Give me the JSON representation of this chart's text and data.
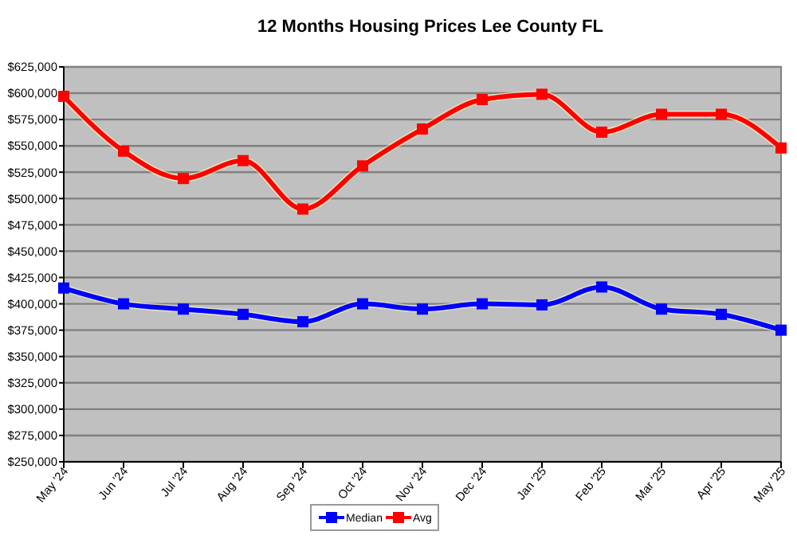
{
  "chart_data": {
    "type": "line",
    "title": "12 Months Housing Prices Lee County FL",
    "categories": [
      "May '24",
      "Jun '24",
      "Jul '24",
      "Aug '24",
      "Sep '24",
      "Oct '24",
      "Nov '24",
      "Dec '24",
      "Jan '25",
      "Feb '25",
      "Mar '25",
      "Apr '25",
      "May '25"
    ],
    "series": [
      {
        "name": "Median",
        "color": "#0000ff",
        "values": [
          415000,
          400000,
          395000,
          390000,
          383000,
          400000,
          395000,
          400000,
          399000,
          416000,
          395000,
          390000,
          375000
        ]
      },
      {
        "name": "Avg",
        "color": "#ff0000",
        "values": [
          597000,
          545000,
          519000,
          536000,
          490000,
          531000,
          566000,
          594000,
          599000,
          563000,
          580000,
          580000,
          548000
        ]
      }
    ],
    "ylim": [
      250000,
      625000
    ],
    "yticks": [
      {
        "value": 250000,
        "label": "$250,000"
      },
      {
        "value": 275000,
        "label": "$275,000"
      },
      {
        "value": 300000,
        "label": "$300,000"
      },
      {
        "value": 325000,
        "label": "$325,000"
      },
      {
        "value": 350000,
        "label": "$350,000"
      },
      {
        "value": 375000,
        "label": "$375,000"
      },
      {
        "value": 400000,
        "label": "$400,000"
      },
      {
        "value": 425000,
        "label": "$425,000"
      },
      {
        "value": 450000,
        "label": "$450,000"
      },
      {
        "value": 475000,
        "label": "$475,000"
      },
      {
        "value": 500000,
        "label": "$500,000"
      },
      {
        "value": 525000,
        "label": "$525,000"
      },
      {
        "value": 550000,
        "label": "$550,000"
      },
      {
        "value": 575000,
        "label": "$575,000"
      },
      {
        "value": 600000,
        "label": "$600,000"
      },
      {
        "value": 625000,
        "label": "$625,000"
      }
    ],
    "grid": "y",
    "legend": "bottom",
    "marker": "square",
    "line_style": "solid"
  }
}
